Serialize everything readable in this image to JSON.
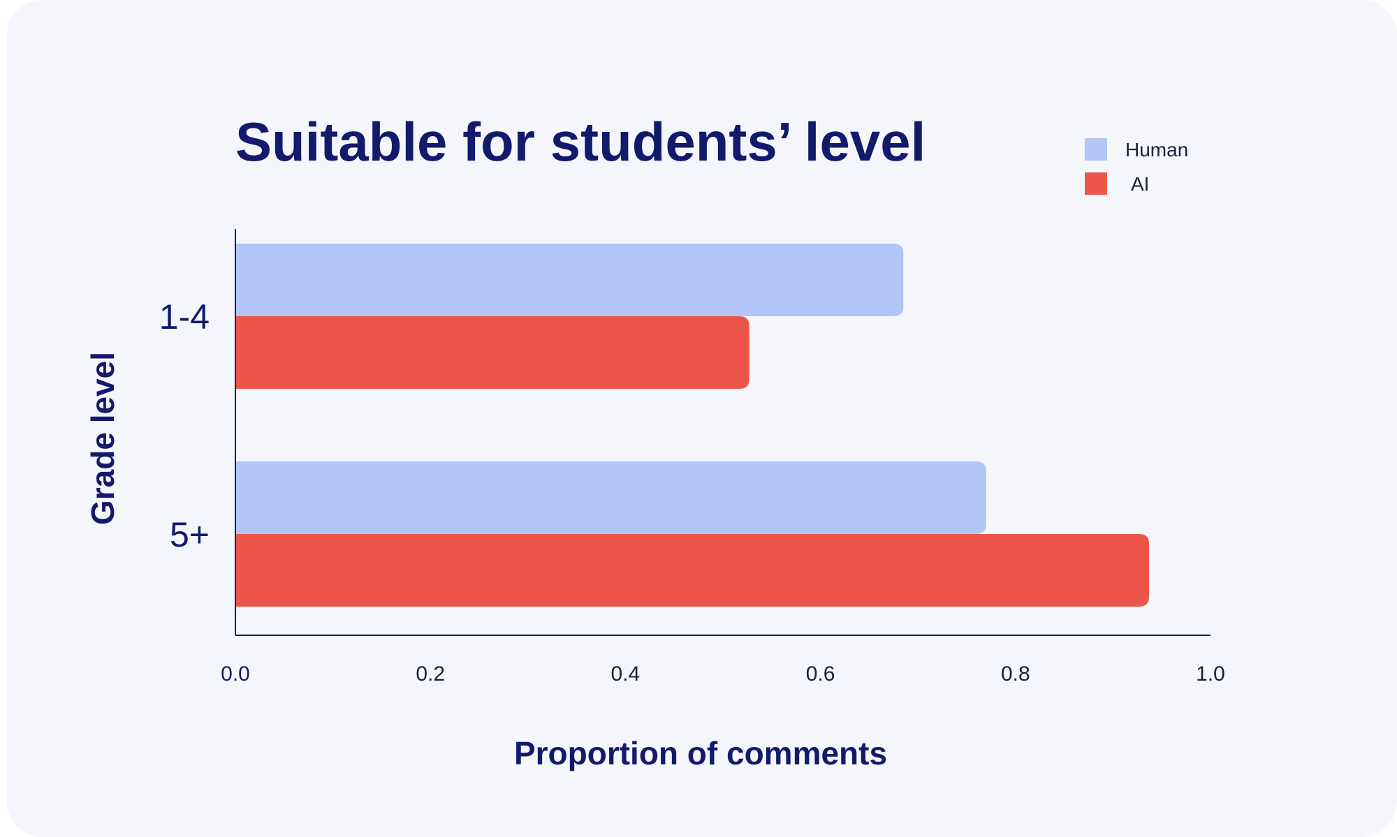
{
  "chart_data": {
    "type": "bar",
    "orientation": "horizontal",
    "title": "Suitable for students’ level",
    "xlabel": "Proportion of comments",
    "ylabel": "Grade level",
    "categories": [
      "1-4",
      "5+"
    ],
    "series": [
      {
        "name": "Human",
        "values": [
          0.685,
          0.77
        ],
        "color": "#b3c5f7"
      },
      {
        "name": "AI",
        "values": [
          0.527,
          0.937
        ],
        "color": "#ec564a"
      }
    ],
    "xlim": [
      0,
      1.0
    ],
    "xticks": [
      "0.0",
      "0.2",
      "0.4",
      "0.6",
      "0.8",
      "1.0"
    ],
    "grid": false,
    "legend_position": "top-right"
  }
}
